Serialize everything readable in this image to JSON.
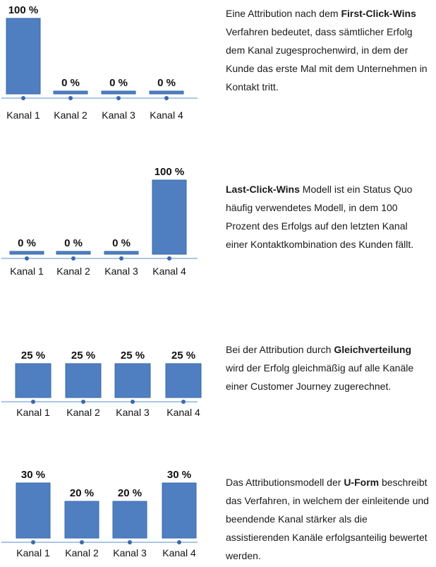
{
  "colors": {
    "bar": "#4f7fc0",
    "bar_edge": "#3a6aa8",
    "axis": "#8fb3de",
    "dot": "#3a6aa8",
    "text": "#1a1a1a"
  },
  "chart_data": [
    {
      "type": "bar",
      "categories": [
        "Kanal 1",
        "Kanal 2",
        "Kanal 3",
        "Kanal 4"
      ],
      "values": [
        100,
        0,
        0,
        0
      ],
      "value_labels": [
        "100 %",
        "0 %",
        "0 %",
        "0 %"
      ],
      "ylim": [
        0,
        100
      ],
      "title": "",
      "xlabel": "",
      "ylabel": "",
      "grid": false
    },
    {
      "type": "bar",
      "categories": [
        "Kanal 1",
        "Kanal 2",
        "Kanal 3",
        "Kanal 4"
      ],
      "values": [
        0,
        0,
        0,
        100
      ],
      "value_labels": [
        "0 %",
        "0 %",
        "0 %",
        "100 %"
      ],
      "ylim": [
        0,
        100
      ],
      "title": "",
      "xlabel": "",
      "ylabel": "",
      "grid": false
    },
    {
      "type": "bar",
      "categories": [
        "Kanal 1",
        "Kanal 2",
        "Kanal 3",
        "Kanal 4"
      ],
      "values": [
        25,
        25,
        25,
        25
      ],
      "value_labels": [
        "25 %",
        "25 %",
        "25 %",
        "25 %"
      ],
      "ylim": [
        0,
        25
      ],
      "title": "",
      "xlabel": "",
      "ylabel": "",
      "grid": false
    },
    {
      "type": "bar",
      "categories": [
        "Kanal 1",
        "Kanal 2",
        "Kanal 3",
        "Kanal 4"
      ],
      "values": [
        30,
        20,
        20,
        30
      ],
      "value_labels": [
        "30 %",
        "20 %",
        "20 %",
        "30 %"
      ],
      "ylim": [
        0,
        30
      ],
      "title": "",
      "xlabel": "",
      "ylabel": "",
      "grid": false
    }
  ],
  "descriptions": [
    {
      "parts": [
        {
          "text": "Eine Attribution nach dem ",
          "bold": false
        },
        {
          "text": "First-Click-Wins",
          "bold": true
        },
        {
          "text": " Verfahren bedeutet, dass sämtlicher Erfolg dem Kanal zugesprochenwird, in dem der Kunde das erste Mal mit dem Unternehmen in Kontakt tritt.",
          "bold": false
        }
      ]
    },
    {
      "parts": [
        {
          "text": "Last-Click-Wins",
          "bold": true
        },
        {
          "text": " Modell ist ein Status Quo häufig verwendetes Modell, in dem 100 Prozent des Erfolgs auf den letzten Kanal einer Kontaktkombination des Kunden fällt.",
          "bold": false
        }
      ]
    },
    {
      "parts": [
        {
          "text": "Bei der Attribution durch ",
          "bold": false
        },
        {
          "text": "Gleichverteilung",
          "bold": true
        },
        {
          "text": " wird der Erfolg gleichmäßig auf alle Kanäle einer Customer Journey zugerechnet.",
          "bold": false
        }
      ]
    },
    {
      "parts": [
        {
          "text": "Das Attributionsmodell der ",
          "bold": false
        },
        {
          "text": "U-Form",
          "bold": true
        },
        {
          "text": " beschreibt das Verfahren, in welchem der einleitende und beendende Kanal stärker als die assistierenden Kanäle erfolgsanteilig bewertet werden.",
          "bold": false
        }
      ]
    }
  ]
}
